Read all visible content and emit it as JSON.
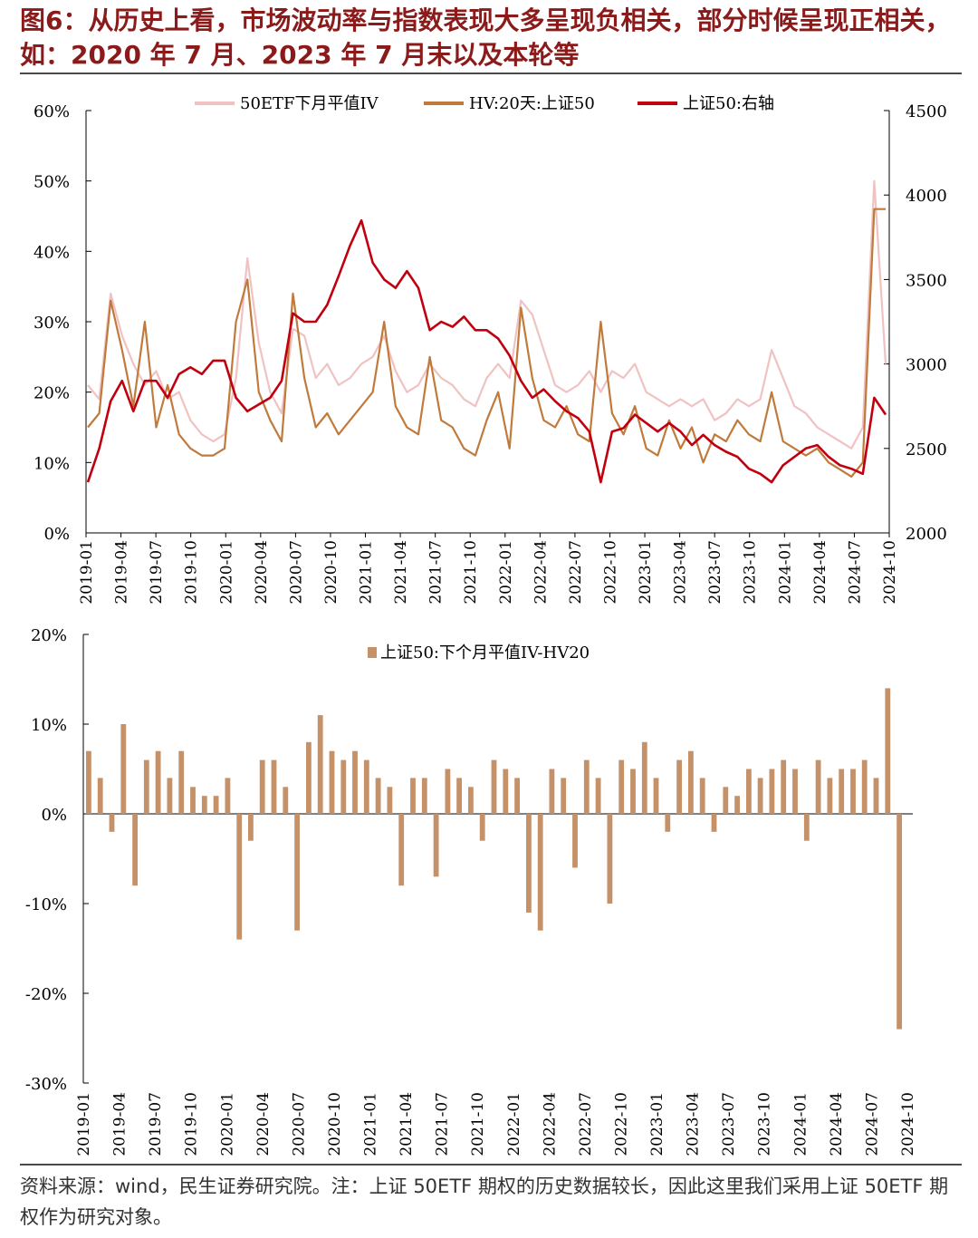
{
  "title": "图6：从历史上看，市场波动率与指数表现大多呈现负相关，部分时候呈现正相关，如：2020 年 7 月、2023 年 7 月末以及本轮等",
  "footer_note": "资料来源：wind，民生证券研究院。注：上证 50ETF 期权的历史数据较长，因此这里我们采用上证 50ETF 期权作为研究对象。",
  "colors": {
    "iv": "#f0c2c2",
    "hv": "#c07a3c",
    "index": "#c0000f",
    "spread": "#c49168",
    "title": "#8b1a1a"
  },
  "chart_data": [
    {
      "type": "line",
      "x_ticks": [
        "2019-01",
        "2019-04",
        "2019-07",
        "2019-10",
        "2020-01",
        "2020-04",
        "2020-07",
        "2020-10",
        "2021-01",
        "2021-04",
        "2021-07",
        "2021-10",
        "2022-01",
        "2022-04",
        "2022-07",
        "2022-10",
        "2023-01",
        "2023-04",
        "2023-07",
        "2023-10",
        "2024-01",
        "2024-04",
        "2024-07",
        "2024-10"
      ],
      "y_left_ticks": [
        "0%",
        "10%",
        "20%",
        "30%",
        "40%",
        "50%",
        "60%"
      ],
      "y_left_range": [
        0,
        60
      ],
      "y_right_ticks": [
        "2000",
        "2500",
        "3000",
        "3500",
        "4000",
        "4500"
      ],
      "y_right_range": [
        2000,
        4500
      ],
      "legend_position": "top-center",
      "series": [
        {
          "name": "50ETF下月平值IV",
          "axis": "left",
          "x": [
            "2019-01",
            "2019-02",
            "2019-03",
            "2019-04",
            "2019-05",
            "2019-06",
            "2019-07",
            "2019-08",
            "2019-09",
            "2019-10",
            "2019-11",
            "2019-12",
            "2020-01",
            "2020-02",
            "2020-03",
            "2020-04",
            "2020-05",
            "2020-06",
            "2020-07",
            "2020-08",
            "2020-09",
            "2020-10",
            "2020-11",
            "2020-12",
            "2021-01",
            "2021-02",
            "2021-03",
            "2021-04",
            "2021-05",
            "2021-06",
            "2021-07",
            "2021-08",
            "2021-09",
            "2021-10",
            "2021-11",
            "2021-12",
            "2022-01",
            "2022-02",
            "2022-03",
            "2022-04",
            "2022-05",
            "2022-06",
            "2022-07",
            "2022-08",
            "2022-09",
            "2022-10",
            "2022-11",
            "2022-12",
            "2023-01",
            "2023-02",
            "2023-03",
            "2023-04",
            "2023-05",
            "2023-06",
            "2023-07",
            "2023-08",
            "2023-09",
            "2023-10",
            "2023-11",
            "2023-12",
            "2024-01",
            "2024-02",
            "2024-03",
            "2024-04",
            "2024-05",
            "2024-06",
            "2024-07",
            "2024-08",
            "2024-09",
            "2024-10",
            "2024-10b"
          ],
          "values": [
            21,
            19,
            34,
            28,
            24,
            21,
            23,
            19,
            20,
            16,
            14,
            13,
            14,
            22,
            39,
            27,
            20,
            17,
            29,
            28,
            22,
            24,
            21,
            22,
            24,
            25,
            28,
            23,
            20,
            21,
            24,
            22,
            21,
            19,
            18,
            22,
            24,
            22,
            33,
            31,
            26,
            21,
            20,
            21,
            23,
            20,
            23,
            22,
            24,
            20,
            19,
            18,
            19,
            18,
            19,
            16,
            17,
            19,
            18,
            19,
            26,
            22,
            18,
            17,
            15,
            14,
            13,
            12,
            15,
            50,
            24
          ]
        },
        {
          "name": "HV:20天:上证50",
          "axis": "left",
          "x": [
            "2019-01",
            "2019-02",
            "2019-03",
            "2019-04",
            "2019-05",
            "2019-06",
            "2019-07",
            "2019-08",
            "2019-09",
            "2019-10",
            "2019-11",
            "2019-12",
            "2020-01",
            "2020-02",
            "2020-03",
            "2020-04",
            "2020-05",
            "2020-06",
            "2020-07",
            "2020-08",
            "2020-09",
            "2020-10",
            "2020-11",
            "2020-12",
            "2021-01",
            "2021-02",
            "2021-03",
            "2021-04",
            "2021-05",
            "2021-06",
            "2021-07",
            "2021-08",
            "2021-09",
            "2021-10",
            "2021-11",
            "2021-12",
            "2022-01",
            "2022-02",
            "2022-03",
            "2022-04",
            "2022-05",
            "2022-06",
            "2022-07",
            "2022-08",
            "2022-09",
            "2022-10",
            "2022-11",
            "2022-12",
            "2023-01",
            "2023-02",
            "2023-03",
            "2023-04",
            "2023-05",
            "2023-06",
            "2023-07",
            "2023-08",
            "2023-09",
            "2023-10",
            "2023-11",
            "2023-12",
            "2024-01",
            "2024-02",
            "2024-03",
            "2024-04",
            "2024-05",
            "2024-06",
            "2024-07",
            "2024-08",
            "2024-09",
            "2024-10",
            "2024-10b"
          ],
          "values": [
            15,
            17,
            33,
            26,
            18,
            30,
            15,
            21,
            14,
            12,
            11,
            11,
            12,
            30,
            36,
            20,
            16,
            13,
            34,
            22,
            15,
            17,
            14,
            16,
            18,
            20,
            30,
            18,
            15,
            14,
            25,
            16,
            15,
            12,
            11,
            16,
            20,
            12,
            32,
            22,
            16,
            15,
            18,
            14,
            13,
            30,
            17,
            14,
            18,
            12,
            11,
            16,
            12,
            15,
            10,
            14,
            13,
            16,
            14,
            13,
            20,
            13,
            12,
            11,
            12,
            10,
            9,
            8,
            10,
            46,
            46
          ]
        },
        {
          "name": "上证50:右轴",
          "axis": "right",
          "x": [
            "2019-01",
            "2019-02",
            "2019-03",
            "2019-04",
            "2019-05",
            "2019-06",
            "2019-07",
            "2019-08",
            "2019-09",
            "2019-10",
            "2019-11",
            "2019-12",
            "2020-01",
            "2020-02",
            "2020-03",
            "2020-04",
            "2020-05",
            "2020-06",
            "2020-07",
            "2020-08",
            "2020-09",
            "2020-10",
            "2020-11",
            "2020-12",
            "2021-01",
            "2021-02",
            "2021-03",
            "2021-04",
            "2021-05",
            "2021-06",
            "2021-07",
            "2021-08",
            "2021-09",
            "2021-10",
            "2021-11",
            "2021-12",
            "2022-01",
            "2022-02",
            "2022-03",
            "2022-04",
            "2022-05",
            "2022-06",
            "2022-07",
            "2022-08",
            "2022-09",
            "2022-10",
            "2022-11",
            "2022-12",
            "2023-01",
            "2023-02",
            "2023-03",
            "2023-04",
            "2023-05",
            "2023-06",
            "2023-07",
            "2023-08",
            "2023-09",
            "2023-10",
            "2023-11",
            "2023-12",
            "2024-01",
            "2024-02",
            "2024-03",
            "2024-04",
            "2024-05",
            "2024-06",
            "2024-07",
            "2024-08",
            "2024-09",
            "2024-10",
            "2024-10b"
          ],
          "values": [
            2300,
            2500,
            2780,
            2900,
            2720,
            2900,
            2900,
            2800,
            2940,
            2980,
            2940,
            3020,
            3020,
            2800,
            2720,
            2760,
            2800,
            2900,
            3300,
            3250,
            3250,
            3350,
            3520,
            3700,
            3850,
            3600,
            3500,
            3450,
            3550,
            3450,
            3200,
            3250,
            3220,
            3280,
            3200,
            3200,
            3150,
            3050,
            2900,
            2800,
            2850,
            2780,
            2720,
            2680,
            2600,
            2300,
            2600,
            2620,
            2700,
            2650,
            2600,
            2650,
            2600,
            2520,
            2580,
            2520,
            2480,
            2450,
            2380,
            2350,
            2300,
            2400,
            2450,
            2500,
            2520,
            2450,
            2400,
            2380,
            2350,
            2800,
            2700
          ]
        }
      ]
    },
    {
      "type": "bar",
      "x_ticks": [
        "2019-01",
        "2019-04",
        "2019-07",
        "2019-10",
        "2020-01",
        "2020-04",
        "2020-07",
        "2020-10",
        "2021-01",
        "2021-04",
        "2021-07",
        "2021-10",
        "2022-01",
        "2022-04",
        "2022-07",
        "2022-10",
        "2023-01",
        "2023-04",
        "2023-07",
        "2023-10",
        "2024-01",
        "2024-04",
        "2024-07",
        "2024-10"
      ],
      "y_ticks": [
        "20%",
        "10%",
        "0%",
        "-10%",
        "-20%",
        "-30%"
      ],
      "y_range": [
        -30,
        20
      ],
      "legend_position": "top-center",
      "series": [
        {
          "name": "上证50:下个月平值IV-HV20",
          "x": [
            "2019-01",
            "2019-02",
            "2019-03",
            "2019-04",
            "2019-05",
            "2019-06",
            "2019-07",
            "2019-08",
            "2019-09",
            "2019-10",
            "2019-11",
            "2019-12",
            "2020-01",
            "2020-02",
            "2020-03",
            "2020-04",
            "2020-05",
            "2020-06",
            "2020-07",
            "2020-08",
            "2020-09",
            "2020-10",
            "2020-11",
            "2020-12",
            "2021-01",
            "2021-02",
            "2021-03",
            "2021-04",
            "2021-05",
            "2021-06",
            "2021-07",
            "2021-08",
            "2021-09",
            "2021-10",
            "2021-11",
            "2021-12",
            "2022-01",
            "2022-02",
            "2022-03",
            "2022-04",
            "2022-05",
            "2022-06",
            "2022-07",
            "2022-08",
            "2022-09",
            "2022-10",
            "2022-11",
            "2022-12",
            "2023-01",
            "2023-02",
            "2023-03",
            "2023-04",
            "2023-05",
            "2023-06",
            "2023-07",
            "2023-08",
            "2023-09",
            "2023-10",
            "2023-11",
            "2023-12",
            "2024-01",
            "2024-02",
            "2024-03",
            "2024-04",
            "2024-05",
            "2024-06",
            "2024-07",
            "2024-08",
            "2024-09",
            "2024-10",
            "2024-10b"
          ],
          "values": [
            7,
            4,
            -2,
            10,
            -8,
            6,
            7,
            4,
            7,
            3,
            2,
            2,
            4,
            -14,
            -3,
            6,
            6,
            3,
            -13,
            8,
            11,
            7,
            6,
            7,
            6,
            4,
            3,
            -8,
            4,
            4,
            -7,
            5,
            4,
            3,
            -3,
            6,
            5,
            4,
            -11,
            -13,
            5,
            4,
            -6,
            6,
            4,
            -10,
            6,
            5,
            8,
            4,
            -2,
            6,
            7,
            4,
            -2,
            3,
            2,
            5,
            4,
            5,
            6,
            5,
            -3,
            6,
            4,
            5,
            5,
            6,
            4,
            14,
            -24
          ]
        }
      ]
    }
  ]
}
